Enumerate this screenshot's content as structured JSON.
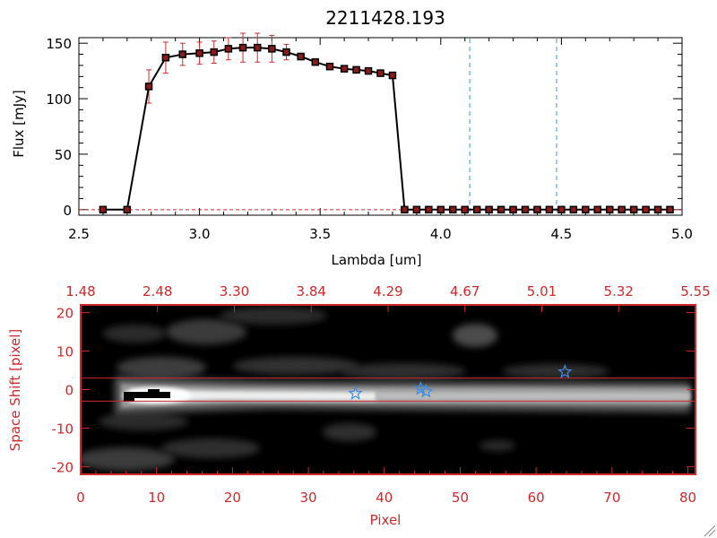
{
  "chart_data": [
    {
      "type": "line",
      "title": "2211428.193",
      "xlabel": "Lambda [um]",
      "ylabel": "Flux [mJy]",
      "xlim": [
        2.5,
        5.0
      ],
      "ylim": [
        -5,
        155
      ],
      "x_ticks": [
        "2.5",
        "3.0",
        "3.5",
        "4.0",
        "4.5",
        "5.0"
      ],
      "y_ticks": [
        "0",
        "50",
        "100",
        "150"
      ],
      "x": [
        2.6,
        2.7,
        2.79,
        2.86,
        2.93,
        3.0,
        3.06,
        3.12,
        3.18,
        3.24,
        3.3,
        3.36,
        3.42,
        3.48,
        3.54,
        3.6,
        3.65,
        3.7,
        3.75,
        3.8,
        3.85,
        3.9,
        3.95,
        4.0,
        4.05,
        4.1,
        4.15,
        4.2,
        4.25,
        4.3,
        4.35,
        4.4,
        4.45,
        4.5,
        4.55,
        4.6,
        4.65,
        4.7,
        4.75,
        4.8,
        4.85,
        4.9,
        4.95
      ],
      "y": [
        0,
        0,
        111,
        137,
        140,
        141,
        142,
        145,
        146,
        146,
        145,
        142,
        138,
        133,
        129,
        127,
        126,
        125,
        123,
        121,
        0,
        0,
        0,
        0,
        0,
        0,
        0,
        0,
        0,
        0,
        0,
        0,
        0,
        0,
        0,
        0,
        0,
        0,
        0,
        0,
        0,
        0,
        0
      ],
      "yerr": [
        0,
        0,
        15,
        14,
        10,
        10,
        10,
        10,
        13,
        13,
        12,
        7,
        3,
        2,
        2,
        1,
        1,
        1,
        1,
        1,
        0,
        0,
        0,
        0,
        0,
        0,
        0,
        0,
        0,
        0,
        0,
        0,
        0,
        0,
        0,
        0,
        0,
        0,
        0,
        0,
        0,
        0,
        0
      ],
      "vlines": [
        4.12,
        4.48
      ],
      "marker_color": "#8b1a1a",
      "line_color": "#000000",
      "errorbar_color": "#d0282b",
      "vline_color": "#3a9bd0",
      "zero_line_color": "#d0282b"
    },
    {
      "type": "heatmap",
      "xlabel": "Pixel",
      "ylabel": "Space Shift [pixel]",
      "xlim": [
        0,
        81
      ],
      "ylim": [
        -22,
        22
      ],
      "x_ticks": [
        "0",
        "10",
        "20",
        "30",
        "40",
        "50",
        "60",
        "70",
        "80"
      ],
      "y_ticks": [
        "-20",
        "-10",
        "0",
        "10",
        "20"
      ],
      "top_x_ticks": [
        "1.48",
        "2.48",
        "3.30",
        "3.84",
        "4.29",
        "4.67",
        "5.01",
        "5.32",
        "5.55"
      ],
      "aperture": [
        -3,
        3
      ],
      "stars": [
        {
          "x": 36.2,
          "y": -1.0
        },
        {
          "x": 44.8,
          "y": 0.2
        },
        {
          "x": 45.5,
          "y": -0.5
        },
        {
          "x": 63.8,
          "y": 4.6
        }
      ],
      "star_color": "#3a8ee6",
      "frame_color": "#d0282b"
    }
  ]
}
